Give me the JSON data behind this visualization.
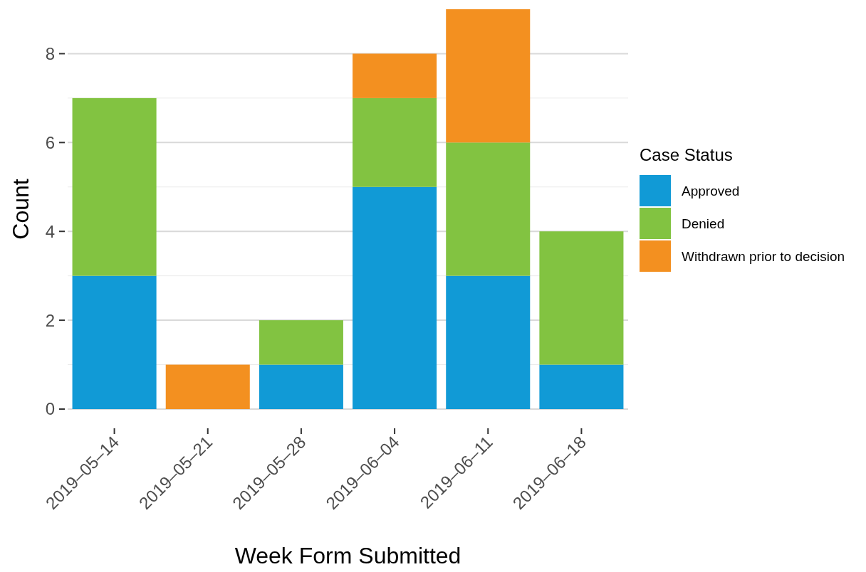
{
  "chart_data": {
    "type": "bar",
    "stacked": true,
    "xlabel": "Week Form Submitted",
    "ylabel": "Count",
    "legend_title": "Case Status",
    "legend": "right",
    "grid": true,
    "categories": [
      "2019–05–14",
      "2019–05–21",
      "2019–05–28",
      "2019–06–04",
      "2019–06–11",
      "2019–06–18"
    ],
    "ylim": [
      0,
      9
    ],
    "yticks": [
      0,
      2,
      4,
      6,
      8
    ],
    "series": [
      {
        "name": "Approved",
        "color": "#119ad6",
        "values": [
          3,
          0,
          1,
          5,
          3,
          1
        ]
      },
      {
        "name": "Denied",
        "color": "#82c341",
        "values": [
          4,
          0,
          1,
          2,
          3,
          3
        ]
      },
      {
        "name": "Withdrawn prior to decision",
        "color": "#f39020",
        "values": [
          0,
          1,
          0,
          1,
          3,
          0
        ]
      }
    ]
  }
}
